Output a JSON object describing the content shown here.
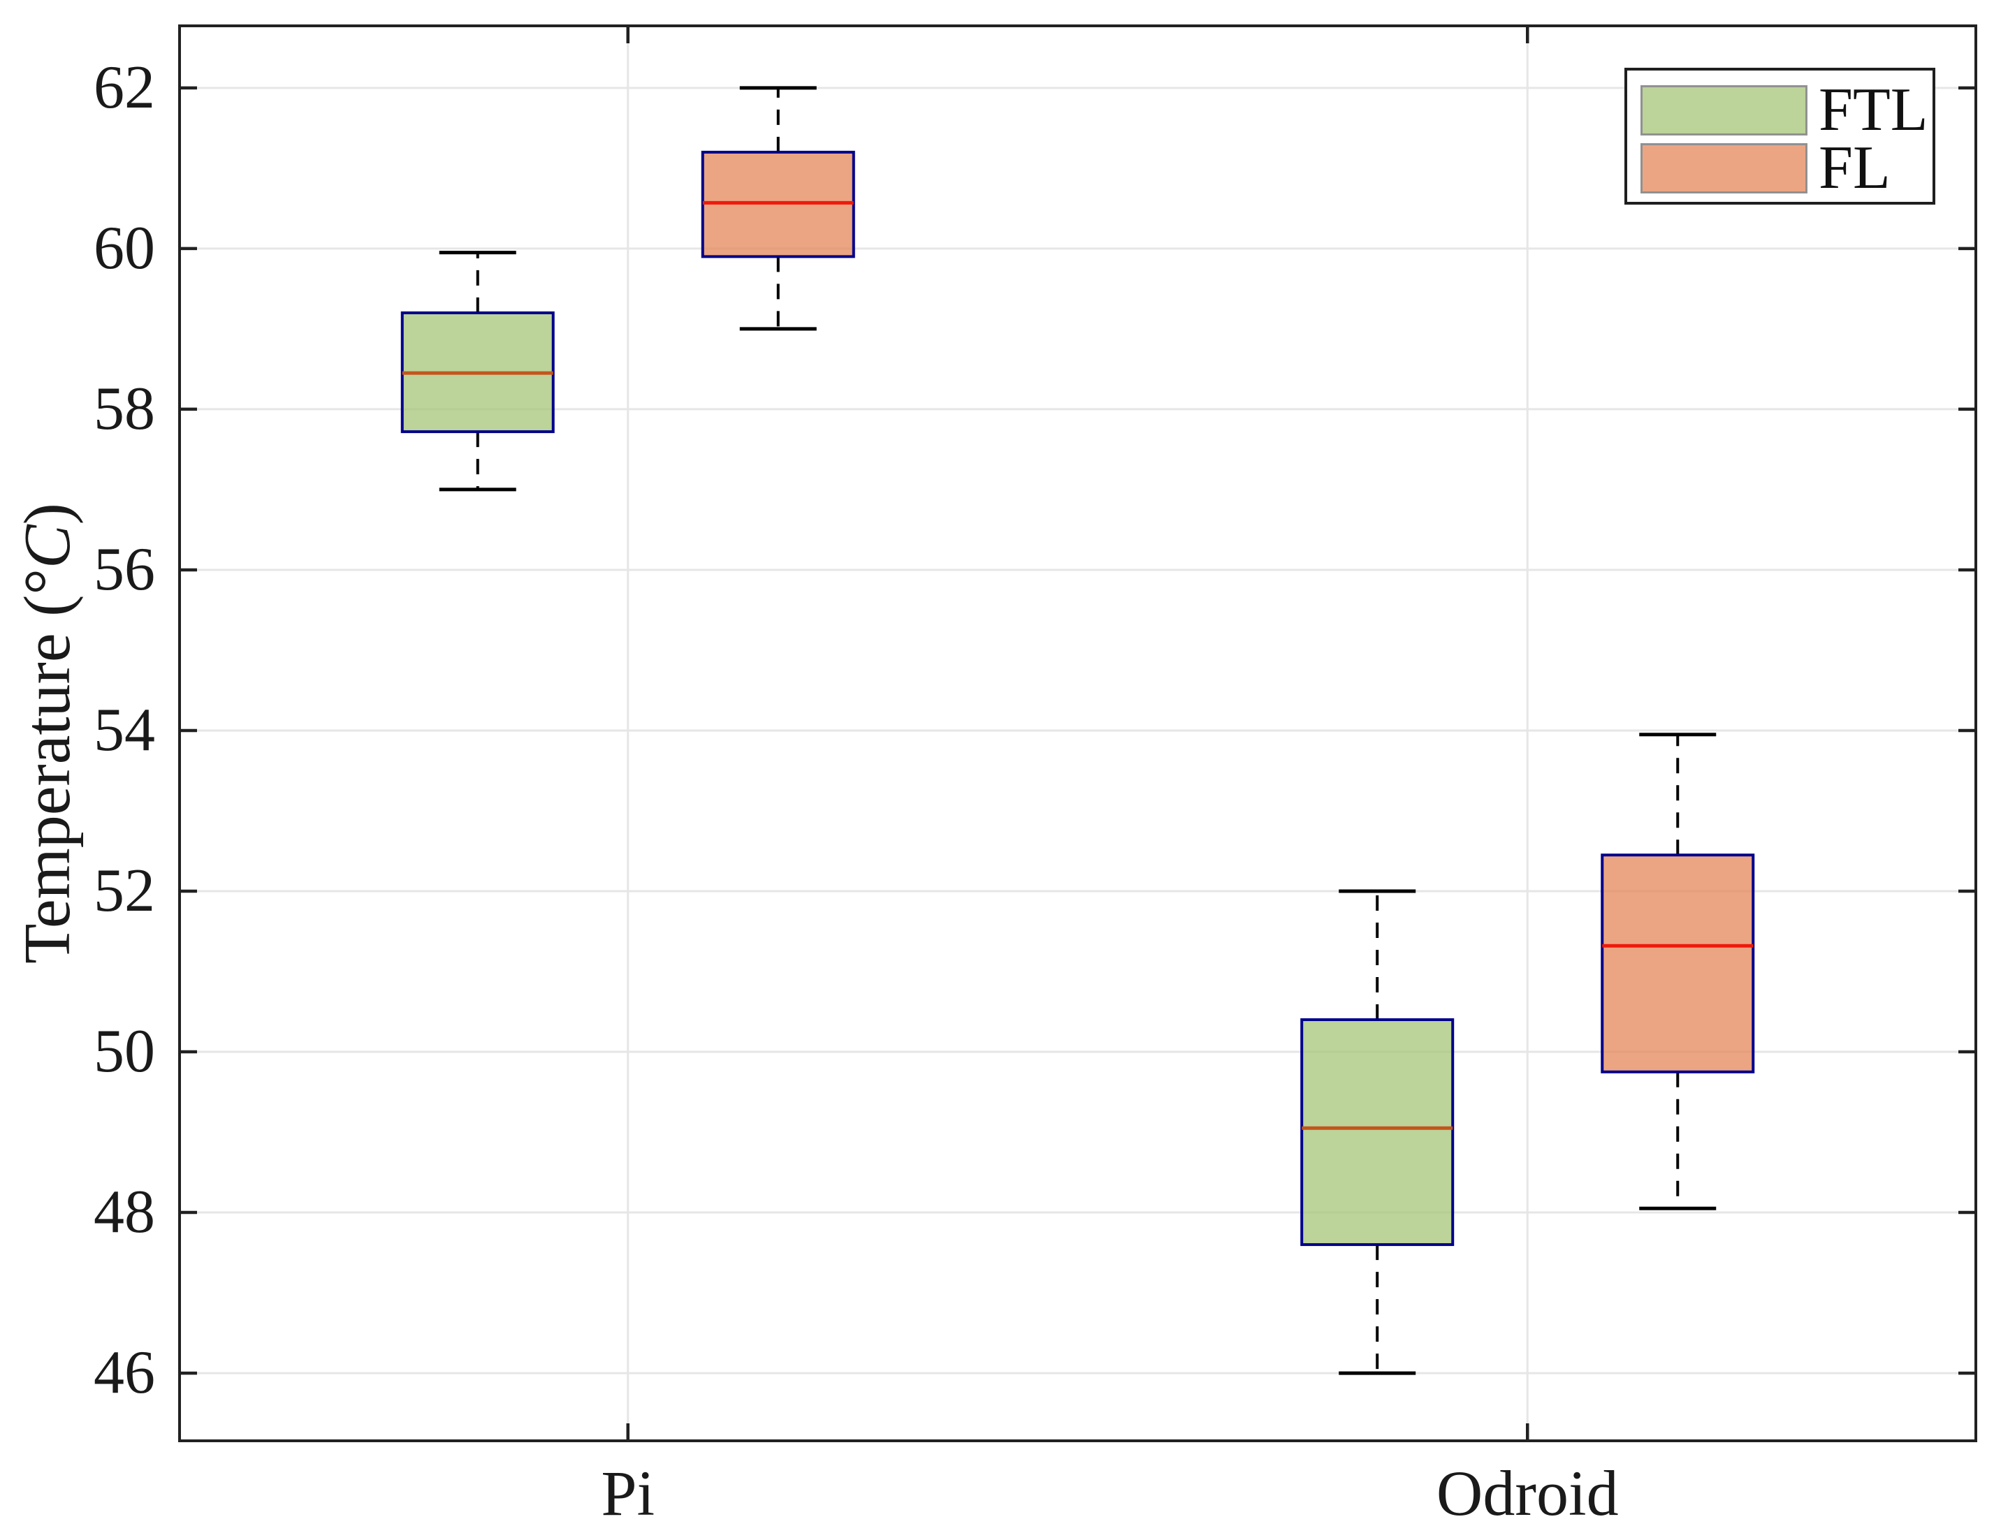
{
  "chart_data": {
    "type": "boxplot",
    "title": "",
    "xlabel": "",
    "ylabel": {
      "prefix": "Temperature (°",
      "italic": "C",
      "suffix": ")"
    },
    "categories": [
      "Pi",
      "Odroid"
    ],
    "y_ticks": [
      46,
      48,
      50,
      52,
      54,
      56,
      58,
      60,
      62
    ],
    "ylim": [
      45.14,
      62.79
    ],
    "grid": true,
    "legend_position": "top-right",
    "series": [
      {
        "name": "FTL",
        "fill_color": "#A5C478",
        "fill_opacity": 0.75,
        "median_color": "#C4551C",
        "boxes": [
          {
            "category": "Pi",
            "whisker_low": 57.0,
            "q1": 57.72,
            "median": 58.45,
            "q3": 59.2,
            "whisker_high": 59.95,
            "outliers": []
          },
          {
            "category": "Odroid",
            "whisker_low": 46.0,
            "q1": 47.6,
            "median": 49.05,
            "q3": 50.4,
            "whisker_high": 52.0,
            "outliers": []
          }
        ]
      },
      {
        "name": "FL",
        "fill_color": "#E48759",
        "fill_opacity": 0.75,
        "median_color": "#EE1A0B",
        "boxes": [
          {
            "category": "Pi",
            "whisker_low": 59.0,
            "q1": 59.9,
            "median": 60.57,
            "q3": 61.2,
            "whisker_high": 62.0,
            "outliers": []
          },
          {
            "category": "Odroid",
            "whisker_low": 48.05,
            "q1": 49.75,
            "median": 51.32,
            "q3": 52.45,
            "whisker_high": 53.95,
            "outliers": []
          }
        ]
      }
    ],
    "colors": {
      "box_edge": "#00008B",
      "whisker": "#000000",
      "grid_line": "#E6E6E6",
      "axis_frame": "#212121",
      "text": "#1a1a1a",
      "background": "#ffffff"
    },
    "legend": {
      "items": [
        {
          "label": "FTL"
        },
        {
          "label": "FL"
        }
      ]
    }
  }
}
